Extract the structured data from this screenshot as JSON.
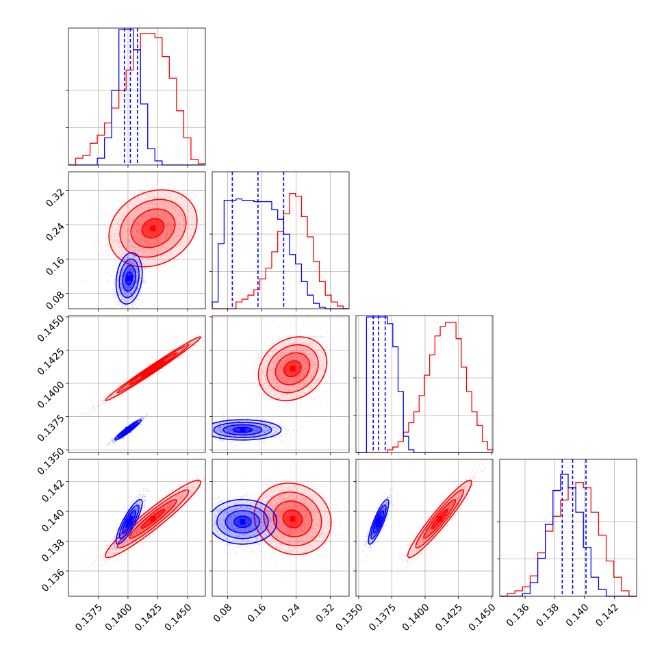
{
  "chart_data": {
    "type": "corner",
    "colors": {
      "red_series": "#ff0000",
      "blue_series": "#0000ff"
    },
    "parameters": [
      {
        "range": [
          0.135,
          0.1465
        ],
        "ticks": [
          0.1375,
          0.14,
          0.1425,
          0.145
        ],
        "tick_labels": [
          "0.1375",
          "0.1400",
          "0.1425",
          "0.1450"
        ]
      },
      {
        "range": [
          0.044,
          0.364
        ],
        "ticks": [
          0.08,
          0.16,
          0.24,
          0.32
        ],
        "tick_labels": [
          "0.08",
          "0.16",
          "0.24",
          "0.32"
        ]
      },
      {
        "range": [
          0.1348,
          0.1451
        ],
        "ticks": [
          0.135,
          0.1375,
          0.14,
          0.1425,
          0.145
        ],
        "tick_labels": [
          "0.1350",
          "0.1375",
          "0.1400",
          "0.1425",
          "0.1450"
        ]
      },
      {
        "range": [
          0.1343,
          0.1435
        ],
        "ticks": [
          0.136,
          0.138,
          0.14,
          0.142
        ],
        "tick_labels": [
          "0.136",
          "0.138",
          "0.140",
          "0.142"
        ]
      }
    ],
    "diag_hist_yticks": 2,
    "diagonal": [
      {
        "red": [
          0.0,
          0.05,
          0.07,
          0.16,
          0.22,
          0.31,
          0.42,
          0.55,
          0.7,
          0.85,
          0.97,
          0.97,
          0.94,
          0.8,
          0.64,
          0.4,
          0.2,
          0.04,
          0.01
        ],
        "blue": [
          0.0,
          0.0,
          0.0,
          0.0,
          0.05,
          0.2,
          0.55,
          1.0,
          1.0,
          0.85,
          0.45,
          0.12,
          0.03,
          0.0,
          0.0,
          0.0,
          0.0,
          0.0,
          0.0
        ],
        "quantiles": [
          0.1397,
          0.1402,
          0.1408
        ]
      },
      {
        "red": [
          0.0,
          0.0,
          0.0,
          0.0,
          0.05,
          0.07,
          0.1,
          0.14,
          0.22,
          0.3,
          0.42,
          0.57,
          0.7,
          0.85,
          0.83,
          0.68,
          0.53,
          0.35,
          0.2,
          0.1,
          0.05,
          0.02,
          0.0
        ],
        "blue": [
          0.05,
          0.48,
          0.8,
          0.8,
          0.81,
          0.8,
          0.8,
          0.79,
          0.79,
          0.79,
          0.73,
          0.66,
          0.55,
          0.4,
          0.33,
          0.2,
          0.1,
          0.04,
          0.01,
          0.0,
          0.0,
          0.0,
          0.0
        ],
        "quantiles": [
          0.091,
          0.151,
          0.211
        ]
      },
      {
        "red": [
          0.0,
          0.0,
          0.0,
          0.0,
          0.0,
          0.0,
          0.02,
          0.04,
          0.08,
          0.15,
          0.22,
          0.3,
          0.42,
          0.57,
          0.72,
          0.86,
          0.93,
          0.96,
          0.96,
          0.84,
          0.63,
          0.45,
          0.3,
          0.2,
          0.08,
          0.02
        ],
        "blue": [
          0.0,
          0.0,
          1.0,
          1.0,
          1.0,
          1.0,
          0.95,
          0.78,
          0.45,
          0.12,
          0.02,
          0.0,
          0.0,
          0.0,
          0.0,
          0.0,
          0.0,
          0.0,
          0.0,
          0.0,
          0.0,
          0.0,
          0.0,
          0.0,
          0.0,
          0.0
        ],
        "quantiles": [
          0.1361,
          0.1365,
          0.137
        ]
      },
      {
        "red": [
          0.0,
          0.02,
          0.04,
          0.07,
          0.15,
          0.32,
          0.48,
          0.59,
          0.71,
          0.8,
          0.84,
          0.8,
          0.62,
          0.45,
          0.26,
          0.14,
          0.04,
          0.0
        ],
        "blue": [
          0.0,
          0.0,
          0.0,
          0.02,
          0.1,
          0.28,
          0.53,
          0.78,
          0.9,
          0.8,
          0.62,
          0.36,
          0.14,
          0.05,
          0.0,
          0.0,
          0.0,
          0.0
        ],
        "quantiles": [
          0.1385,
          0.1392,
          0.1401
        ]
      }
    ],
    "offdiag": [
      {
        "row": 1,
        "col": 0,
        "red": {
          "mean": [
            0.1421,
            0.232
          ],
          "sd": [
            0.00185,
            0.045
          ],
          "corr": 0.2,
          "extra": {
            "mean": [
              0.1443,
              0.115
            ],
            "sd": [
              0.001,
              0.022
            ],
            "weight": 0.06
          }
        },
        "blue": {
          "mean": [
            0.1401,
            0.115
          ],
          "sd": [
            0.00055,
            0.03
          ],
          "corr": 0.2
        }
      },
      {
        "row": 2,
        "col": 0,
        "red": {
          "mean": [
            0.1421,
            0.1411
          ],
          "sd": [
            0.002,
            0.0012
          ],
          "corr": 0.99
        },
        "blue": {
          "mean": [
            0.14,
            0.1365
          ],
          "sd": [
            0.00055,
            0.00038
          ],
          "corr": 0.95
        }
      },
      {
        "row": 2,
        "col": 1,
        "red": {
          "mean": [
            0.232,
            0.1411
          ],
          "sd": [
            0.04,
            0.0012
          ],
          "corr": 0.2,
          "extra": {
            "mean": [
              0.13,
              0.1425
            ],
            "sd": [
              0.03,
              0.0007
            ],
            "weight": 0.12
          }
        },
        "blue": {
          "mean": [
            0.115,
            0.1365
          ],
          "sd": [
            0.045,
            0.00038
          ],
          "corr": 0.0
        }
      },
      {
        "row": 3,
        "col": 0,
        "red": {
          "mean": [
            0.1421,
            0.1395
          ],
          "sd": [
            0.002,
            0.0013
          ],
          "corr": 0.95
        },
        "blue": {
          "mean": [
            0.1401,
            0.1393
          ],
          "sd": [
            0.00055,
            0.00075
          ],
          "corr": 0.85
        }
      },
      {
        "row": 3,
        "col": 1,
        "red": {
          "mean": [
            0.232,
            0.1395
          ],
          "sd": [
            0.045,
            0.0012
          ],
          "corr": -0.1
        },
        "blue": {
          "mean": [
            0.115,
            0.1393
          ],
          "sd": [
            0.04,
            0.00075
          ],
          "corr": 0.0
        }
      },
      {
        "row": 3,
        "col": 2,
        "red": {
          "mean": [
            0.1411,
            0.1395
          ],
          "sd": [
            0.0012,
            0.0013
          ],
          "corr": 0.95
        },
        "blue": {
          "mean": [
            0.1365,
            0.1393
          ],
          "sd": [
            0.00038,
            0.00075
          ],
          "corr": 0.85
        }
      }
    ]
  }
}
